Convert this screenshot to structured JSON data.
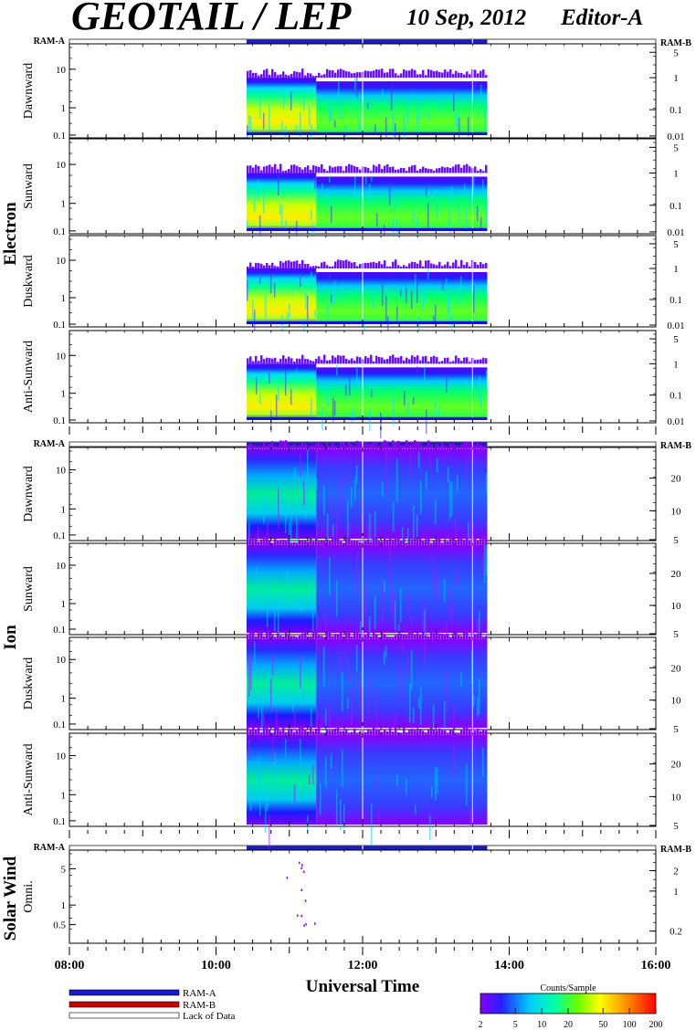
{
  "header": {
    "title": "GEOTAIL / LEP",
    "date": "10 Sep, 2012",
    "editor": "Editor-A"
  },
  "status_bar": {
    "left_label": "RAM-A",
    "right_label": "RAM-B"
  },
  "colors": {
    "ram_a": "#1a1acc",
    "ram_b": "#cc0000",
    "lack_of_data": "#ffffff"
  },
  "chart_data": {
    "type": "heatmap",
    "xlabel": "Universal Time",
    "x_ticks": [
      "08:00",
      "10:00",
      "12:00",
      "14:00",
      "16:00"
    ],
    "xlim": [
      "08:00",
      "16:00"
    ],
    "data_coverage": [
      "10:25",
      "13:42"
    ],
    "groups": [
      {
        "name": "Electron",
        "panels": [
          {
            "label": "Dawnward",
            "y_ticks": [
              "10",
              "1",
              "0.1"
            ],
            "right_ticks": [
              "5",
              "1",
              "0.1",
              "0.01"
            ]
          },
          {
            "label": "Sunward",
            "y_ticks": [
              "10",
              "1",
              "0.1"
            ],
            "right_ticks": [
              "5",
              "1",
              "0.1",
              "0.01"
            ]
          },
          {
            "label": "Duskward",
            "y_ticks": [
              "10",
              "1",
              "0.1"
            ],
            "right_ticks": [
              "5",
              "1",
              "0.1",
              "0.01"
            ]
          },
          {
            "label": "Anti-Sunward",
            "y_ticks": [
              "10",
              "1",
              "0.1"
            ],
            "right_ticks": [
              "5",
              "1",
              "0.1",
              "0.01"
            ]
          }
        ]
      },
      {
        "name": "Ion",
        "panels": [
          {
            "label": "Dawnward",
            "y_ticks": [
              "10",
              "1",
              "0.1"
            ],
            "right_ticks": [
              "20",
              "10",
              "5"
            ]
          },
          {
            "label": "Sunward",
            "y_ticks": [
              "10",
              "1",
              "0.1"
            ],
            "right_ticks": [
              "20",
              "10",
              "5"
            ]
          },
          {
            "label": "Duskward",
            "y_ticks": [
              "10",
              "1",
              "0.1"
            ],
            "right_ticks": [
              "20",
              "10",
              "5"
            ]
          },
          {
            "label": "Anti-Sunward",
            "y_ticks": [
              "10",
              "1",
              "0.1"
            ],
            "right_ticks": [
              "20",
              "10",
              "5"
            ]
          }
        ]
      },
      {
        "name": "Solar Wind",
        "panels": [
          {
            "label": "Omni.",
            "y_ticks": [
              "5",
              "1",
              "0.5"
            ],
            "right_ticks": [
              "2",
              "1",
              "0.2"
            ]
          }
        ]
      }
    ],
    "colorbar": {
      "title": "Counts/Sample",
      "ticks": [
        "2",
        "5",
        "10",
        "20",
        "50",
        "100",
        "200"
      ],
      "range": [
        2,
        200
      ],
      "scale": "log"
    }
  },
  "legend": {
    "items": [
      {
        "label": "RAM-A",
        "color": "#1a1acc"
      },
      {
        "label": "RAM-B",
        "color": "#cc0000"
      },
      {
        "label": "Lack of Data",
        "color": "#ffffff"
      }
    ]
  }
}
